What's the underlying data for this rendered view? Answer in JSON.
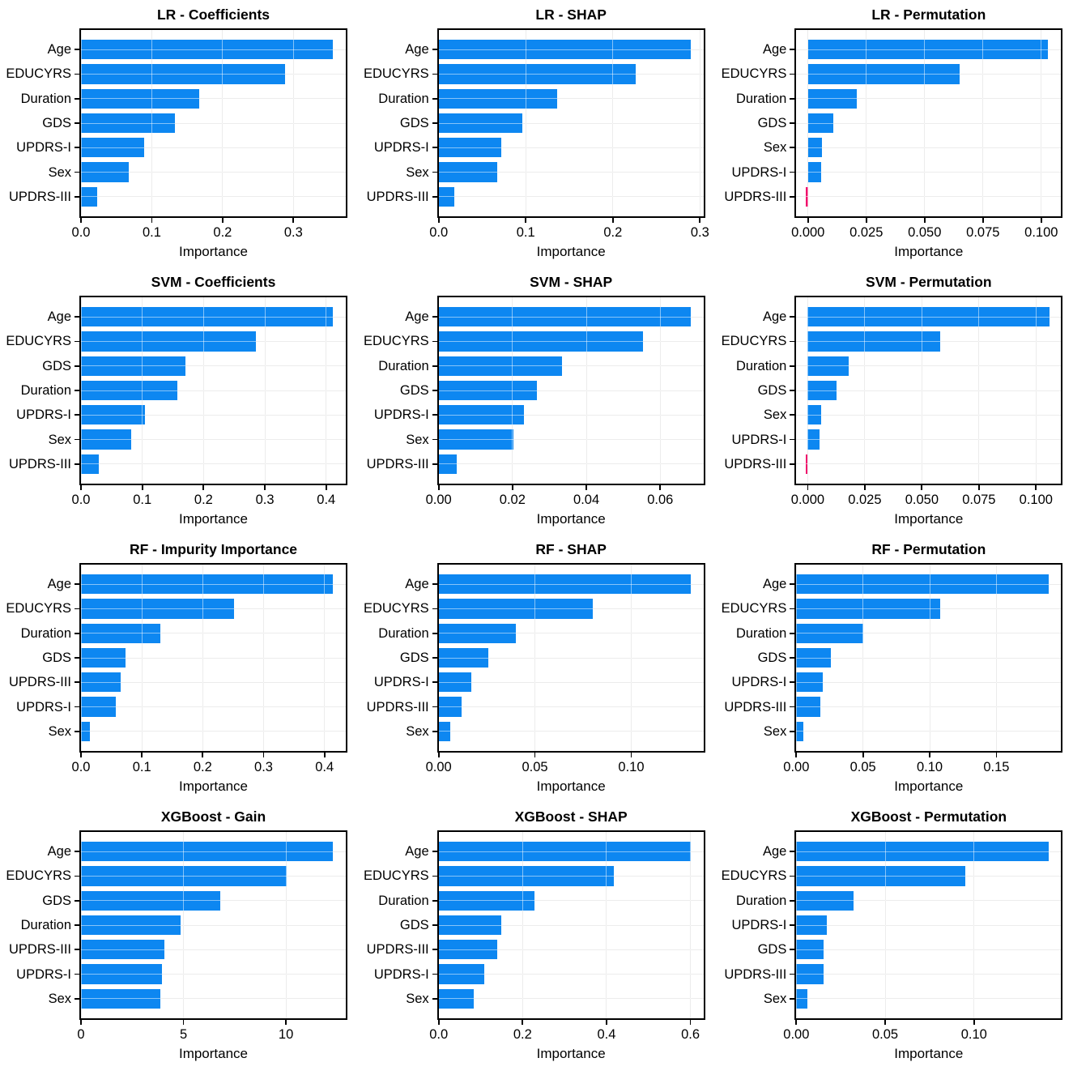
{
  "style": {
    "bar_color": "#0d87f1",
    "negative_bar_color": "#f0116c",
    "grid_color": "#d9d9d9",
    "axis_color": "#000000",
    "background": "#ffffff"
  },
  "chart_data": [
    {
      "type": "bar",
      "orientation": "horizontal",
      "title": "LR - Coefficients",
      "xlabel": "Importance",
      "categories": [
        "Age",
        "EDUCYRS",
        "Duration",
        "GDS",
        "UPDRS-I",
        "Sex",
        "UPDRS-III"
      ],
      "values": [
        0.356,
        0.288,
        0.167,
        0.133,
        0.089,
        0.067,
        0.023
      ],
      "xlim": [
        0,
        0.374
      ],
      "xticks": [
        0,
        0.1,
        0.2,
        0.3
      ],
      "xtick_labels": [
        "0.0",
        "0.1",
        "0.2",
        "0.3"
      ],
      "grid": true,
      "legend": null
    },
    {
      "type": "bar",
      "orientation": "horizontal",
      "title": "LR - SHAP",
      "xlabel": "Importance",
      "categories": [
        "Age",
        "EDUCYRS",
        "Duration",
        "GDS",
        "UPDRS-I",
        "Sex",
        "UPDRS-III"
      ],
      "values": [
        0.289,
        0.226,
        0.136,
        0.096,
        0.072,
        0.067,
        0.018
      ],
      "xlim": [
        0,
        0.304
      ],
      "xticks": [
        0,
        0.1,
        0.2,
        0.3
      ],
      "xtick_labels": [
        "0.0",
        "0.1",
        "0.2",
        "0.3"
      ],
      "grid": true,
      "legend": null
    },
    {
      "type": "bar",
      "orientation": "horizontal",
      "title": "LR - Permutation",
      "xlabel": "Importance",
      "categories": [
        "Age",
        "EDUCYRS",
        "Duration",
        "GDS",
        "Sex",
        "UPDRS-I",
        "UPDRS-III"
      ],
      "values": [
        0.103,
        0.065,
        0.021,
        0.011,
        0.006,
        0.0055,
        -0.001
      ],
      "xlim": [
        -0.005,
        0.1085
      ],
      "xticks": [
        0,
        0.025,
        0.05,
        0.075,
        0.1
      ],
      "xtick_labels": [
        "0.000",
        "0.025",
        "0.050",
        "0.075",
        "0.100"
      ],
      "grid": true,
      "legend": null
    },
    {
      "type": "bar",
      "orientation": "horizontal",
      "title": "SVM - Coefficients",
      "xlabel": "Importance",
      "categories": [
        "Age",
        "EDUCYRS",
        "GDS",
        "Duration",
        "UPDRS-I",
        "Sex",
        "UPDRS-III"
      ],
      "values": [
        0.411,
        0.286,
        0.17,
        0.157,
        0.104,
        0.082,
        0.029
      ],
      "xlim": [
        0,
        0.432
      ],
      "xticks": [
        0,
        0.1,
        0.2,
        0.3,
        0.4
      ],
      "xtick_labels": [
        "0.0",
        "0.1",
        "0.2",
        "0.3",
        "0.4"
      ],
      "grid": true,
      "legend": null
    },
    {
      "type": "bar",
      "orientation": "horizontal",
      "title": "SVM - SHAP",
      "xlabel": "Importance",
      "categories": [
        "Age",
        "EDUCYRS",
        "Duration",
        "GDS",
        "UPDRS-I",
        "Sex",
        "UPDRS-III"
      ],
      "values": [
        0.0683,
        0.0553,
        0.0334,
        0.0266,
        0.0231,
        0.0202,
        0.0049
      ],
      "xlim": [
        0,
        0.0717
      ],
      "xticks": [
        0,
        0.02,
        0.04,
        0.06
      ],
      "xtick_labels": [
        "0.00",
        "0.02",
        "0.04",
        "0.06"
      ],
      "grid": true,
      "legend": null
    },
    {
      "type": "bar",
      "orientation": "horizontal",
      "title": "SVM - Permutation",
      "xlabel": "Importance",
      "categories": [
        "Age",
        "EDUCYRS",
        "Duration",
        "GDS",
        "Sex",
        "UPDRS-I",
        "UPDRS-III"
      ],
      "values": [
        0.106,
        0.058,
        0.018,
        0.0125,
        0.006,
        0.005,
        -0.001
      ],
      "xlim": [
        -0.005,
        0.111
      ],
      "xticks": [
        0,
        0.025,
        0.05,
        0.075,
        0.1
      ],
      "xtick_labels": [
        "0.000",
        "0.025",
        "0.050",
        "0.075",
        "0.100"
      ],
      "grid": true,
      "legend": null
    },
    {
      "type": "bar",
      "orientation": "horizontal",
      "title": "RF - Impurity Importance",
      "xlabel": "Importance",
      "categories": [
        "Age",
        "EDUCYRS",
        "Duration",
        "GDS",
        "UPDRS-III",
        "UPDRS-I",
        "Sex"
      ],
      "values": [
        0.414,
        0.252,
        0.13,
        0.073,
        0.065,
        0.057,
        0.014
      ],
      "xlim": [
        0,
        0.435
      ],
      "xticks": [
        0,
        0.1,
        0.2,
        0.3,
        0.4
      ],
      "xtick_labels": [
        "0.0",
        "0.1",
        "0.2",
        "0.3",
        "0.4"
      ],
      "grid": true,
      "legend": null
    },
    {
      "type": "bar",
      "orientation": "horizontal",
      "title": "RF - SHAP",
      "xlabel": "Importance",
      "categories": [
        "Age",
        "EDUCYRS",
        "Duration",
        "GDS",
        "UPDRS-I",
        "UPDRS-III",
        "Sex"
      ],
      "values": [
        0.131,
        0.08,
        0.04,
        0.026,
        0.017,
        0.012,
        0.006
      ],
      "xlim": [
        0,
        0.1375
      ],
      "xticks": [
        0,
        0.05,
        0.1
      ],
      "xtick_labels": [
        "0.00",
        "0.05",
        "0.10"
      ],
      "grid": true,
      "legend": null
    },
    {
      "type": "bar",
      "orientation": "horizontal",
      "title": "RF - Permutation",
      "xlabel": "Importance",
      "categories": [
        "Age",
        "EDUCYRS",
        "Duration",
        "GDS",
        "UPDRS-I",
        "UPDRS-III",
        "Sex"
      ],
      "values": [
        0.189,
        0.108,
        0.05,
        0.026,
        0.02,
        0.018,
        0.005
      ],
      "xlim": [
        0,
        0.1985
      ],
      "xticks": [
        0,
        0.05,
        0.1,
        0.15
      ],
      "xtick_labels": [
        "0.00",
        "0.05",
        "0.10",
        "0.15"
      ],
      "grid": true,
      "legend": null
    },
    {
      "type": "bar",
      "orientation": "horizontal",
      "title": "XGBoost - Gain",
      "xlabel": "Importance",
      "categories": [
        "Age",
        "EDUCYRS",
        "GDS",
        "Duration",
        "UPDRS-III",
        "UPDRS-I",
        "Sex"
      ],
      "values": [
        12.3,
        10.05,
        6.79,
        4.87,
        4.07,
        3.94,
        3.87
      ],
      "xlim": [
        0,
        12.92
      ],
      "xticks": [
        0,
        5,
        10
      ],
      "xtick_labels": [
        "0",
        "5",
        "10"
      ],
      "grid": true,
      "legend": null
    },
    {
      "type": "bar",
      "orientation": "horizontal",
      "title": "XGBoost - SHAP",
      "xlabel": "Importance",
      "categories": [
        "Age",
        "EDUCYRS",
        "Duration",
        "GDS",
        "UPDRS-III",
        "UPDRS-I",
        "Sex"
      ],
      "values": [
        0.601,
        0.417,
        0.229,
        0.15,
        0.139,
        0.109,
        0.084
      ],
      "xlim": [
        0,
        0.631
      ],
      "xticks": [
        0,
        0.2,
        0.4,
        0.6
      ],
      "xtick_labels": [
        "0.0",
        "0.2",
        "0.4",
        "0.6"
      ],
      "grid": true,
      "legend": null
    },
    {
      "type": "bar",
      "orientation": "horizontal",
      "title": "XGBoost - Permutation",
      "xlabel": "Importance",
      "categories": [
        "Age",
        "EDUCYRS",
        "Duration",
        "UPDRS-I",
        "GDS",
        "UPDRS-III",
        "Sex"
      ],
      "values": [
        0.142,
        0.095,
        0.032,
        0.017,
        0.0155,
        0.0155,
        0.0064
      ],
      "xlim": [
        0,
        0.149
      ],
      "xticks": [
        0,
        0.05,
        0.1
      ],
      "xtick_labels": [
        "0.00",
        "0.05",
        "0.10"
      ],
      "grid": true,
      "legend": null
    }
  ]
}
